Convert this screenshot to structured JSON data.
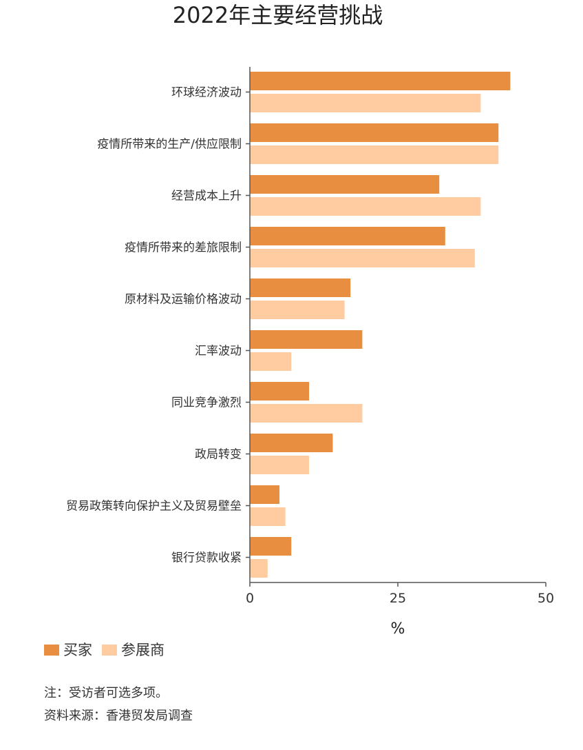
{
  "chart_data": {
    "type": "bar",
    "orientation": "horizontal",
    "title": "2022年主要经营挑战",
    "xlabel": "%",
    "xlim": [
      0,
      50
    ],
    "xticks": [
      0,
      25,
      50
    ],
    "categories": [
      "环球经济波动",
      "疫情所带来的生产/供应限制",
      "经营成本上升",
      "疫情所带来的差旅限制",
      "原材料及运输价格波动",
      "汇率波动",
      "同业竞争激烈",
      "政局转变",
      "贸易政策转向保护主义及贸易壁垒",
      "银行贷款收紧"
    ],
    "series": [
      {
        "name": "买家",
        "color": "#E88E40",
        "values": [
          44,
          42,
          32,
          33,
          17,
          19,
          10,
          14,
          5,
          7
        ]
      },
      {
        "name": "参展商",
        "color": "#FFCBA0",
        "values": [
          39,
          42,
          39,
          38,
          16,
          7,
          19,
          10,
          6,
          3
        ]
      }
    ],
    "legend_position": "bottom-left",
    "grid": false
  },
  "notes": {
    "note": "注：受访者可选多项。",
    "source": "资料来源：香港贸发局调查"
  }
}
